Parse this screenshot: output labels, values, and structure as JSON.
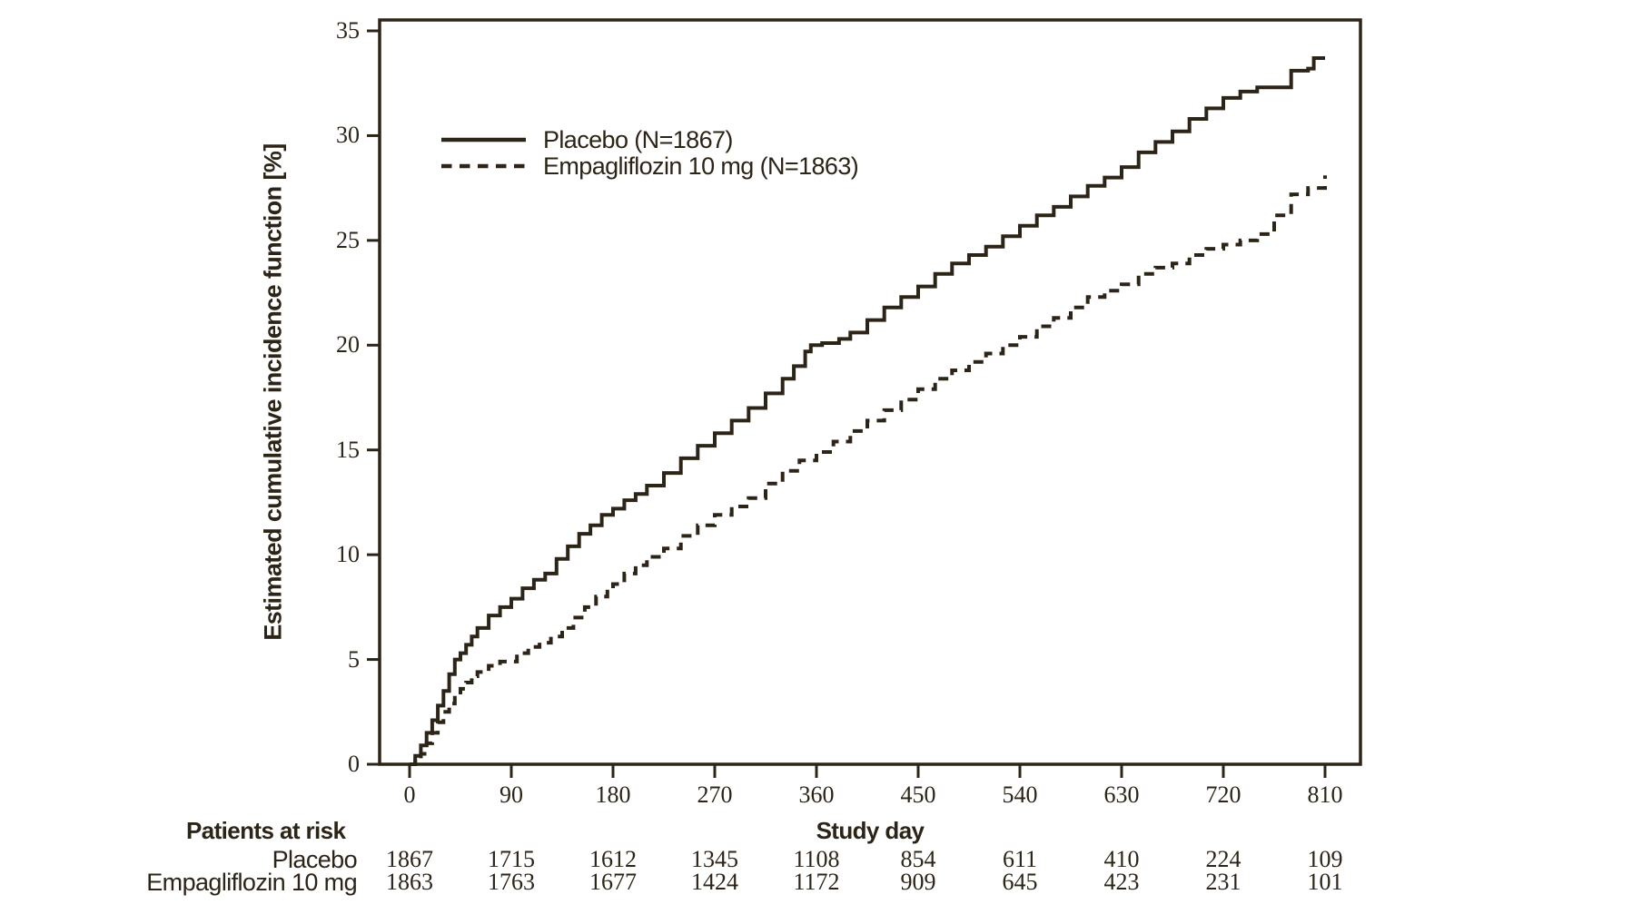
{
  "figure": {
    "y_axis": {
      "title": "Estimated cumulative incidence function [%]",
      "ticks": [
        0,
        5,
        10,
        15,
        20,
        25,
        30,
        35
      ],
      "range": [
        0,
        35
      ]
    },
    "x_axis": {
      "title": "Study day",
      "ticks": [
        0,
        90,
        180,
        270,
        360,
        450,
        540,
        630,
        720,
        810
      ],
      "range": [
        0,
        810
      ]
    }
  },
  "legend": {
    "items": [
      {
        "label": "Placebo (N=1867)",
        "line": "solid"
      },
      {
        "label": "Empagliflozin 10 mg (N=1863)",
        "line": "dashed"
      }
    ]
  },
  "risk_table": {
    "heading": "Patients at risk",
    "days": [
      0,
      90,
      180,
      270,
      360,
      450,
      540,
      630,
      720,
      810
    ],
    "rows": [
      {
        "label": "Placebo",
        "counts": [
          "1867",
          "1715",
          "1612",
          "1345",
          "1108",
          "854",
          "611",
          "410",
          "224",
          "109"
        ]
      },
      {
        "label": "Empagliflozin 10 mg",
        "counts": [
          "1863",
          "1763",
          "1677",
          "1424",
          "1172",
          "909",
          "645",
          "423",
          "231",
          "101"
        ]
      }
    ]
  },
  "colors": {
    "ink": "#2d2418",
    "background": "#ffffff"
  },
  "chart_data": {
    "type": "line",
    "title": "",
    "xlabel": "Study day",
    "ylabel": "Estimated cumulative incidence function [%]",
    "xlim": [
      0,
      810
    ],
    "ylim": [
      0,
      35
    ],
    "x_ticks": [
      0,
      90,
      180,
      270,
      360,
      450,
      540,
      630,
      720,
      810
    ],
    "y_ticks": [
      0,
      5,
      10,
      15,
      20,
      25,
      30,
      35
    ],
    "grid": false,
    "legend_position": "top-left-inside",
    "curve_style": "step-after",
    "series": [
      {
        "name": "Placebo (N=1867)",
        "line": "solid",
        "points": [
          [
            0,
            0
          ],
          [
            5,
            0.4
          ],
          [
            10,
            0.9
          ],
          [
            15,
            1.5
          ],
          [
            20,
            2.1
          ],
          [
            25,
            2.8
          ],
          [
            30,
            3.5
          ],
          [
            35,
            4.3
          ],
          [
            40,
            5.0
          ],
          [
            45,
            5.3
          ],
          [
            50,
            5.7
          ],
          [
            55,
            6.1
          ],
          [
            60,
            6.5
          ],
          [
            70,
            7.1
          ],
          [
            80,
            7.5
          ],
          [
            90,
            7.9
          ],
          [
            100,
            8.4
          ],
          [
            110,
            8.8
          ],
          [
            120,
            9.1
          ],
          [
            130,
            9.8
          ],
          [
            140,
            10.4
          ],
          [
            150,
            11.0
          ],
          [
            160,
            11.4
          ],
          [
            170,
            11.9
          ],
          [
            180,
            12.2
          ],
          [
            190,
            12.6
          ],
          [
            200,
            12.9
          ],
          [
            210,
            13.3
          ],
          [
            225,
            13.9
          ],
          [
            240,
            14.6
          ],
          [
            255,
            15.2
          ],
          [
            270,
            15.8
          ],
          [
            285,
            16.4
          ],
          [
            300,
            17.0
          ],
          [
            315,
            17.7
          ],
          [
            330,
            18.4
          ],
          [
            340,
            19.0
          ],
          [
            350,
            19.7
          ],
          [
            355,
            20.0
          ],
          [
            365,
            20.1
          ],
          [
            380,
            20.3
          ],
          [
            390,
            20.6
          ],
          [
            405,
            21.2
          ],
          [
            420,
            21.8
          ],
          [
            435,
            22.3
          ],
          [
            450,
            22.8
          ],
          [
            465,
            23.4
          ],
          [
            480,
            23.9
          ],
          [
            495,
            24.3
          ],
          [
            510,
            24.7
          ],
          [
            525,
            25.2
          ],
          [
            540,
            25.7
          ],
          [
            555,
            26.2
          ],
          [
            570,
            26.6
          ],
          [
            585,
            27.1
          ],
          [
            600,
            27.6
          ],
          [
            615,
            28.0
          ],
          [
            630,
            28.5
          ],
          [
            645,
            29.2
          ],
          [
            660,
            29.7
          ],
          [
            675,
            30.2
          ],
          [
            690,
            30.8
          ],
          [
            705,
            31.3
          ],
          [
            720,
            31.8
          ],
          [
            735,
            32.1
          ],
          [
            750,
            32.3
          ],
          [
            770,
            32.3
          ],
          [
            780,
            33.1
          ],
          [
            795,
            33.2
          ],
          [
            800,
            33.7
          ],
          [
            810,
            33.7
          ]
        ]
      },
      {
        "name": "Empagliflozin 10 mg (N=1863)",
        "line": "dashed",
        "points": [
          [
            0,
            0
          ],
          [
            5,
            0.2
          ],
          [
            10,
            0.5
          ],
          [
            15,
            1.0
          ],
          [
            20,
            1.5
          ],
          [
            25,
            2.0
          ],
          [
            30,
            2.5
          ],
          [
            35,
            2.9
          ],
          [
            40,
            3.3
          ],
          [
            45,
            3.6
          ],
          [
            50,
            3.9
          ],
          [
            55,
            4.2
          ],
          [
            60,
            4.4
          ],
          [
            70,
            4.7
          ],
          [
            80,
            4.9
          ],
          [
            90,
            4.9
          ],
          [
            95,
            5.3
          ],
          [
            105,
            5.6
          ],
          [
            115,
            5.8
          ],
          [
            125,
            6.1
          ],
          [
            135,
            6.5
          ],
          [
            145,
            7.0
          ],
          [
            155,
            7.5
          ],
          [
            165,
            8.0
          ],
          [
            175,
            8.4
          ],
          [
            180,
            8.6
          ],
          [
            190,
            9.1
          ],
          [
            200,
            9.5
          ],
          [
            210,
            9.9
          ],
          [
            225,
            10.3
          ],
          [
            240,
            10.9
          ],
          [
            255,
            11.4
          ],
          [
            270,
            11.9
          ],
          [
            285,
            12.3
          ],
          [
            300,
            12.7
          ],
          [
            315,
            13.4
          ],
          [
            330,
            14.0
          ],
          [
            345,
            14.5
          ],
          [
            360,
            14.9
          ],
          [
            375,
            15.4
          ],
          [
            390,
            15.9
          ],
          [
            405,
            16.4
          ],
          [
            420,
            16.9
          ],
          [
            435,
            17.4
          ],
          [
            450,
            17.9
          ],
          [
            465,
            18.4
          ],
          [
            480,
            18.8
          ],
          [
            495,
            19.2
          ],
          [
            510,
            19.6
          ],
          [
            525,
            20.0
          ],
          [
            540,
            20.4
          ],
          [
            555,
            20.9
          ],
          [
            570,
            21.3
          ],
          [
            585,
            21.8
          ],
          [
            600,
            22.3
          ],
          [
            615,
            22.6
          ],
          [
            630,
            22.9
          ],
          [
            645,
            23.4
          ],
          [
            660,
            23.7
          ],
          [
            675,
            23.9
          ],
          [
            690,
            24.3
          ],
          [
            705,
            24.6
          ],
          [
            720,
            24.8
          ],
          [
            735,
            25.0
          ],
          [
            750,
            25.3
          ],
          [
            765,
            26.2
          ],
          [
            780,
            27.2
          ],
          [
            795,
            27.5
          ],
          [
            810,
            28.1
          ]
        ]
      }
    ]
  }
}
